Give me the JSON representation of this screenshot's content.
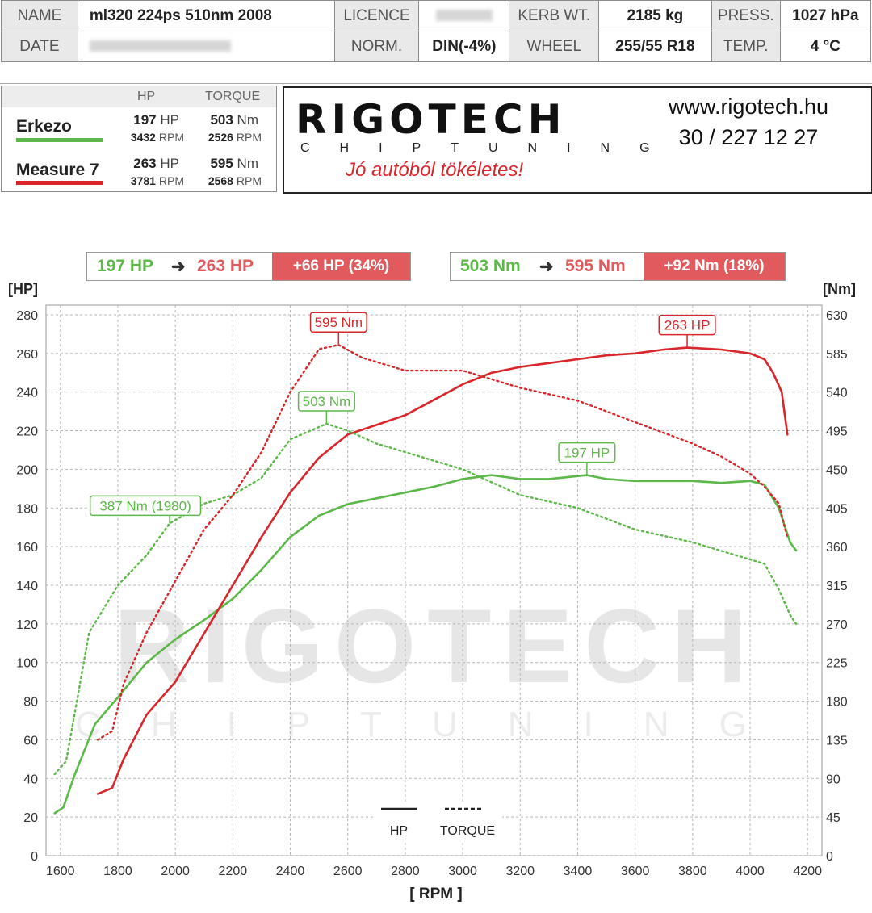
{
  "header": {
    "row1": [
      {
        "label": "NAME",
        "value": "ml320 224ps 510nm  2008"
      },
      {
        "label": "LICENCE",
        "value": ""
      },
      {
        "label": "KERB WT.",
        "value": "2185 kg"
      },
      {
        "label": "PRESS.",
        "value": "1027 hPa"
      }
    ],
    "row2": [
      {
        "label": "DATE",
        "value": ""
      },
      {
        "label": "NORM.",
        "value": "DIN(-4%)"
      },
      {
        "label": "WHEEL",
        "value": "255/55 R18"
      },
      {
        "label": "TEMP.",
        "value": "4 °C"
      }
    ]
  },
  "legend": {
    "col_hp": "HP",
    "col_torque": "TORQUE",
    "runs": [
      {
        "name": "Erkezo",
        "color": "#5cb848",
        "hp": "197",
        "hp_unit": "HP",
        "hp_rpm": "3432",
        "nm": "503",
        "nm_unit": "Nm",
        "nm_rpm": "2526",
        "rpm_unit": "RPM"
      },
      {
        "name": "Measure 7",
        "color": "#d9262b",
        "hp": "263",
        "hp_unit": "HP",
        "hp_rpm": "3781",
        "nm": "595",
        "nm_unit": "Nm",
        "nm_rpm": "2568",
        "rpm_unit": "RPM"
      }
    ]
  },
  "logo": {
    "brand": "RIGOTECH",
    "sub": "CHIPTUNING",
    "tagline": "Jó autóból tökéletes!",
    "website": "www.rigotech.hu",
    "phone": "30 / 227 12 27",
    "brand_color": "#d9262b"
  },
  "comparison": {
    "hp": {
      "before": "197 HP",
      "after": "263 HP",
      "diff": "+66 HP  (34%)"
    },
    "nm": {
      "before": "503 Nm",
      "after": "595 Nm",
      "diff": "+92 Nm  (18%)"
    },
    "arrow": "➜"
  },
  "watermark": {
    "main": "RIGOTECH",
    "sub": "CHIPTUNING"
  },
  "chart_data": {
    "type": "line",
    "xlabel": "[ RPM ]",
    "ylabel_left": "[HP]",
    "ylabel_right": "[Nm]",
    "xlim": [
      1550,
      4250
    ],
    "ylim_left": [
      0,
      285
    ],
    "ylim_right": [
      0,
      641.25
    ],
    "x_ticks": [
      1600,
      1800,
      2000,
      2200,
      2400,
      2600,
      2800,
      3000,
      3200,
      3400,
      3600,
      3800,
      4000,
      4200
    ],
    "y_ticks_left": [
      0,
      20,
      40,
      60,
      80,
      100,
      120,
      140,
      160,
      180,
      200,
      220,
      240,
      260,
      280
    ],
    "y_ticks_right": [
      0,
      45,
      90,
      135,
      180,
      225,
      270,
      315,
      360,
      405,
      450,
      495,
      540,
      585,
      630
    ],
    "grid": true,
    "legend_placement": "bottom-center",
    "legend": [
      {
        "label": "HP",
        "style": "solid"
      },
      {
        "label": "TORQUE",
        "style": "dashed"
      }
    ],
    "series": [
      {
        "name": "Erkezo HP",
        "axis": "left",
        "style": "solid",
        "color": "#5cb848",
        "x": [
          1580,
          1610,
          1650,
          1720,
          1800,
          1900,
          2000,
          2100,
          2200,
          2300,
          2400,
          2500,
          2600,
          2700,
          2800,
          2900,
          3000,
          3100,
          3200,
          3300,
          3432,
          3500,
          3600,
          3700,
          3800,
          3900,
          4000,
          4050,
          4100,
          4140,
          4160
        ],
        "y": [
          22,
          25,
          42,
          68,
          82,
          100,
          112,
          122,
          133,
          148,
          165,
          176,
          182,
          185,
          188,
          191,
          195,
          197,
          195,
          195,
          197,
          195,
          194,
          194,
          194,
          193,
          194,
          192,
          180,
          162,
          158
        ]
      },
      {
        "name": "Measure 7 HP",
        "axis": "left",
        "style": "solid",
        "color": "#d9262b",
        "x": [
          1730,
          1780,
          1820,
          1900,
          2000,
          2100,
          2200,
          2300,
          2400,
          2500,
          2600,
          2700,
          2800,
          2900,
          3000,
          3100,
          3200,
          3300,
          3400,
          3500,
          3600,
          3700,
          3781,
          3900,
          4000,
          4050,
          4080,
          4110,
          4130
        ],
        "y": [
          32,
          35,
          50,
          73,
          90,
          115,
          140,
          165,
          188,
          206,
          218,
          223,
          228,
          236,
          244,
          250,
          253,
          255,
          257,
          259,
          260,
          262,
          263,
          262,
          260,
          257,
          250,
          240,
          218
        ]
      },
      {
        "name": "Erkezo Torque",
        "axis": "right",
        "style": "dashed",
        "color": "#5cb848",
        "x": [
          1580,
          1620,
          1700,
          1800,
          1900,
          1980,
          2100,
          2200,
          2300,
          2400,
          2526,
          2600,
          2700,
          2800,
          3000,
          3200,
          3400,
          3600,
          3800,
          3900,
          4000,
          4050,
          4100,
          4140,
          4160
        ],
        "y": [
          95,
          110,
          260,
          315,
          350,
          387,
          410,
          420,
          440,
          485,
          503,
          495,
          480,
          470,
          450,
          420,
          405,
          380,
          365,
          355,
          345,
          340,
          310,
          280,
          270
        ]
      },
      {
        "name": "Measure 7 Torque",
        "axis": "right",
        "style": "dashed",
        "color": "#d9262b",
        "x": [
          1730,
          1780,
          1820,
          1900,
          2000,
          2100,
          2200,
          2300,
          2400,
          2500,
          2568,
          2650,
          2800,
          3000,
          3200,
          3400,
          3600,
          3800,
          3900,
          4000,
          4050,
          4100,
          4130
        ],
        "y": [
          135,
          145,
          200,
          260,
          320,
          380,
          420,
          470,
          540,
          590,
          595,
          580,
          565,
          565,
          545,
          530,
          505,
          480,
          465,
          445,
          430,
          410,
          370
        ]
      }
    ],
    "annotations": [
      {
        "text": "595 Nm",
        "x": 2568,
        "y": 595,
        "axis": "right",
        "color": "#d9262b"
      },
      {
        "text": "263 HP",
        "x": 3781,
        "y": 263,
        "axis": "left",
        "color": "#d9262b"
      },
      {
        "text": "503 Nm",
        "x": 2526,
        "y": 503,
        "axis": "right",
        "color": "#5cb848"
      },
      {
        "text": "197 HP",
        "x": 3432,
        "y": 197,
        "axis": "left",
        "color": "#5cb848"
      },
      {
        "text": "387 Nm (1980)",
        "x": 1980,
        "y": 387,
        "axis": "right",
        "color": "#5cb848"
      }
    ]
  }
}
